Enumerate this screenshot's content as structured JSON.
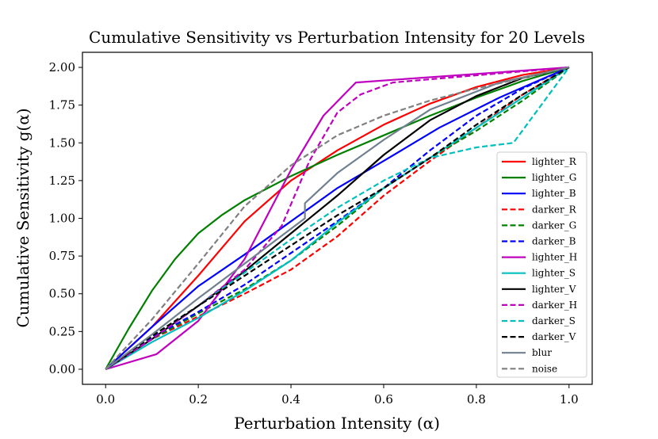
{
  "chart_data": {
    "type": "line",
    "title": "Cumulative Sensitivity vs Perturbation Intensity for 20 Levels",
    "xlabel": "Perturbation Intensity (α)",
    "ylabel": "Cumulative Sensitivity g(α)",
    "xlim": [
      -0.05,
      1.05
    ],
    "ylim": [
      -0.1,
      2.1
    ],
    "xticks": [
      0.0,
      0.2,
      0.4,
      0.6,
      0.8,
      1.0
    ],
    "xtick_labels": [
      "0.0",
      "0.2",
      "0.4",
      "0.6",
      "0.8",
      "1.0"
    ],
    "yticks": [
      0.0,
      0.25,
      0.5,
      0.75,
      1.0,
      1.25,
      1.5,
      1.75,
      2.0
    ],
    "ytick_labels": [
      "0.00",
      "0.25",
      "0.50",
      "0.75",
      "1.00",
      "1.25",
      "1.50",
      "1.75",
      "2.00"
    ],
    "grid": false,
    "legend_position": "center-right",
    "series": [
      {
        "name": "lighter_R",
        "color": "#ff0000",
        "dash": "solid",
        "x": [
          0,
          0.1,
          0.2,
          0.3,
          0.4,
          0.5,
          0.6,
          0.7,
          0.8,
          0.9,
          1.0
        ],
        "y": [
          0,
          0.28,
          0.62,
          0.98,
          1.25,
          1.45,
          1.62,
          1.76,
          1.87,
          1.95,
          2.0
        ]
      },
      {
        "name": "lighter_G",
        "color": "#008000",
        "dash": "solid",
        "x": [
          0,
          0.05,
          0.1,
          0.15,
          0.2,
          0.25,
          0.3,
          0.4,
          0.5,
          0.6,
          0.7,
          0.8,
          0.9,
          1.0
        ],
        "y": [
          0,
          0.27,
          0.52,
          0.73,
          0.9,
          1.02,
          1.12,
          1.28,
          1.42,
          1.55,
          1.68,
          1.8,
          1.91,
          2.0
        ]
      },
      {
        "name": "lighter_B",
        "color": "#0000ff",
        "dash": "solid",
        "x": [
          0,
          0.1,
          0.2,
          0.3,
          0.4,
          0.5,
          0.6,
          0.72,
          0.85,
          1.0
        ],
        "y": [
          0,
          0.28,
          0.55,
          0.76,
          0.98,
          1.2,
          1.38,
          1.6,
          1.8,
          2.0
        ]
      },
      {
        "name": "darker_R",
        "color": "#ff0000",
        "dash": "dashed",
        "x": [
          0,
          0.1,
          0.2,
          0.3,
          0.4,
          0.5,
          0.6,
          0.7,
          0.8,
          0.9,
          1.0
        ],
        "y": [
          0,
          0.2,
          0.35,
          0.5,
          0.66,
          0.88,
          1.15,
          1.38,
          1.6,
          1.82,
          2.0
        ]
      },
      {
        "name": "darker_G",
        "color": "#008000",
        "dash": "dashed",
        "x": [
          0,
          0.1,
          0.2,
          0.3,
          0.4,
          0.5,
          0.6,
          0.7,
          0.8,
          0.9,
          1.0
        ],
        "y": [
          0,
          0.2,
          0.37,
          0.53,
          0.72,
          0.95,
          1.2,
          1.4,
          1.58,
          1.78,
          2.0
        ]
      },
      {
        "name": "darker_B",
        "color": "#0000ff",
        "dash": "dashed",
        "x": [
          0,
          0.1,
          0.2,
          0.3,
          0.4,
          0.5,
          0.6,
          0.7,
          0.8,
          0.9,
          1.0
        ],
        "y": [
          0,
          0.21,
          0.38,
          0.56,
          0.77,
          0.98,
          1.2,
          1.45,
          1.68,
          1.86,
          2.0
        ]
      },
      {
        "name": "lighter_H",
        "color": "#bf00bf",
        "dash": "solid",
        "x": [
          0,
          0.11,
          0.2,
          0.3,
          0.4,
          0.47,
          0.54,
          1.0
        ],
        "y": [
          0,
          0.1,
          0.32,
          0.73,
          1.32,
          1.68,
          1.9,
          2.0
        ]
      },
      {
        "name": "lighter_S",
        "color": "#00bfbf",
        "dash": "solid",
        "x": [
          0,
          0.1,
          0.2,
          0.3,
          0.4,
          0.5,
          0.6,
          0.7,
          0.8,
          0.9,
          1.0
        ],
        "y": [
          0,
          0.18,
          0.34,
          0.52,
          0.72,
          0.97,
          1.2,
          1.4,
          1.6,
          1.8,
          2.0
        ]
      },
      {
        "name": "lighter_V",
        "color": "#000000",
        "dash": "solid",
        "x": [
          0,
          0.1,
          0.2,
          0.3,
          0.4,
          0.5,
          0.6,
          0.7,
          0.8,
          0.9,
          1.0
        ],
        "y": [
          0,
          0.2,
          0.42,
          0.65,
          0.9,
          1.15,
          1.42,
          1.65,
          1.81,
          1.93,
          2.0
        ]
      },
      {
        "name": "darker_H",
        "color": "#bf00bf",
        "dash": "dashed",
        "x": [
          0,
          0.1,
          0.2,
          0.3,
          0.38,
          0.44,
          0.5,
          0.55,
          0.62,
          1.0
        ],
        "y": [
          0,
          0.2,
          0.42,
          0.66,
          0.95,
          1.38,
          1.7,
          1.82,
          1.9,
          2.0
        ]
      },
      {
        "name": "darker_S",
        "color": "#00bfbf",
        "dash": "dashed",
        "x": [
          0,
          0.1,
          0.2,
          0.3,
          0.4,
          0.5,
          0.6,
          0.7,
          0.8,
          0.88,
          1.0
        ],
        "y": [
          0,
          0.22,
          0.42,
          0.64,
          0.86,
          1.07,
          1.25,
          1.4,
          1.47,
          1.5,
          2.0
        ]
      },
      {
        "name": "darker_V",
        "color": "#000000",
        "dash": "dashed",
        "x": [
          0,
          0.1,
          0.2,
          0.3,
          0.4,
          0.5,
          0.6,
          0.7,
          0.8,
          0.9,
          1.0
        ],
        "y": [
          0,
          0.22,
          0.42,
          0.62,
          0.82,
          1.02,
          1.2,
          1.4,
          1.62,
          1.82,
          2.0
        ]
      },
      {
        "name": "blur",
        "color": "#708090",
        "dash": "solid",
        "x": [
          0,
          0.1,
          0.2,
          0.3,
          0.43,
          0.43,
          0.5,
          0.6,
          0.7,
          0.85,
          1.0
        ],
        "y": [
          0,
          0.23,
          0.47,
          0.7,
          1.0,
          1.1,
          1.3,
          1.52,
          1.72,
          1.9,
          2.0
        ]
      },
      {
        "name": "noise",
        "color": "#808080",
        "dash": "dashed",
        "x": [
          0,
          0.1,
          0.2,
          0.3,
          0.4,
          0.5,
          0.6,
          0.7,
          0.8,
          0.9,
          1.0
        ],
        "y": [
          0,
          0.33,
          0.7,
          1.08,
          1.35,
          1.55,
          1.68,
          1.78,
          1.86,
          1.93,
          2.0
        ]
      }
    ]
  }
}
